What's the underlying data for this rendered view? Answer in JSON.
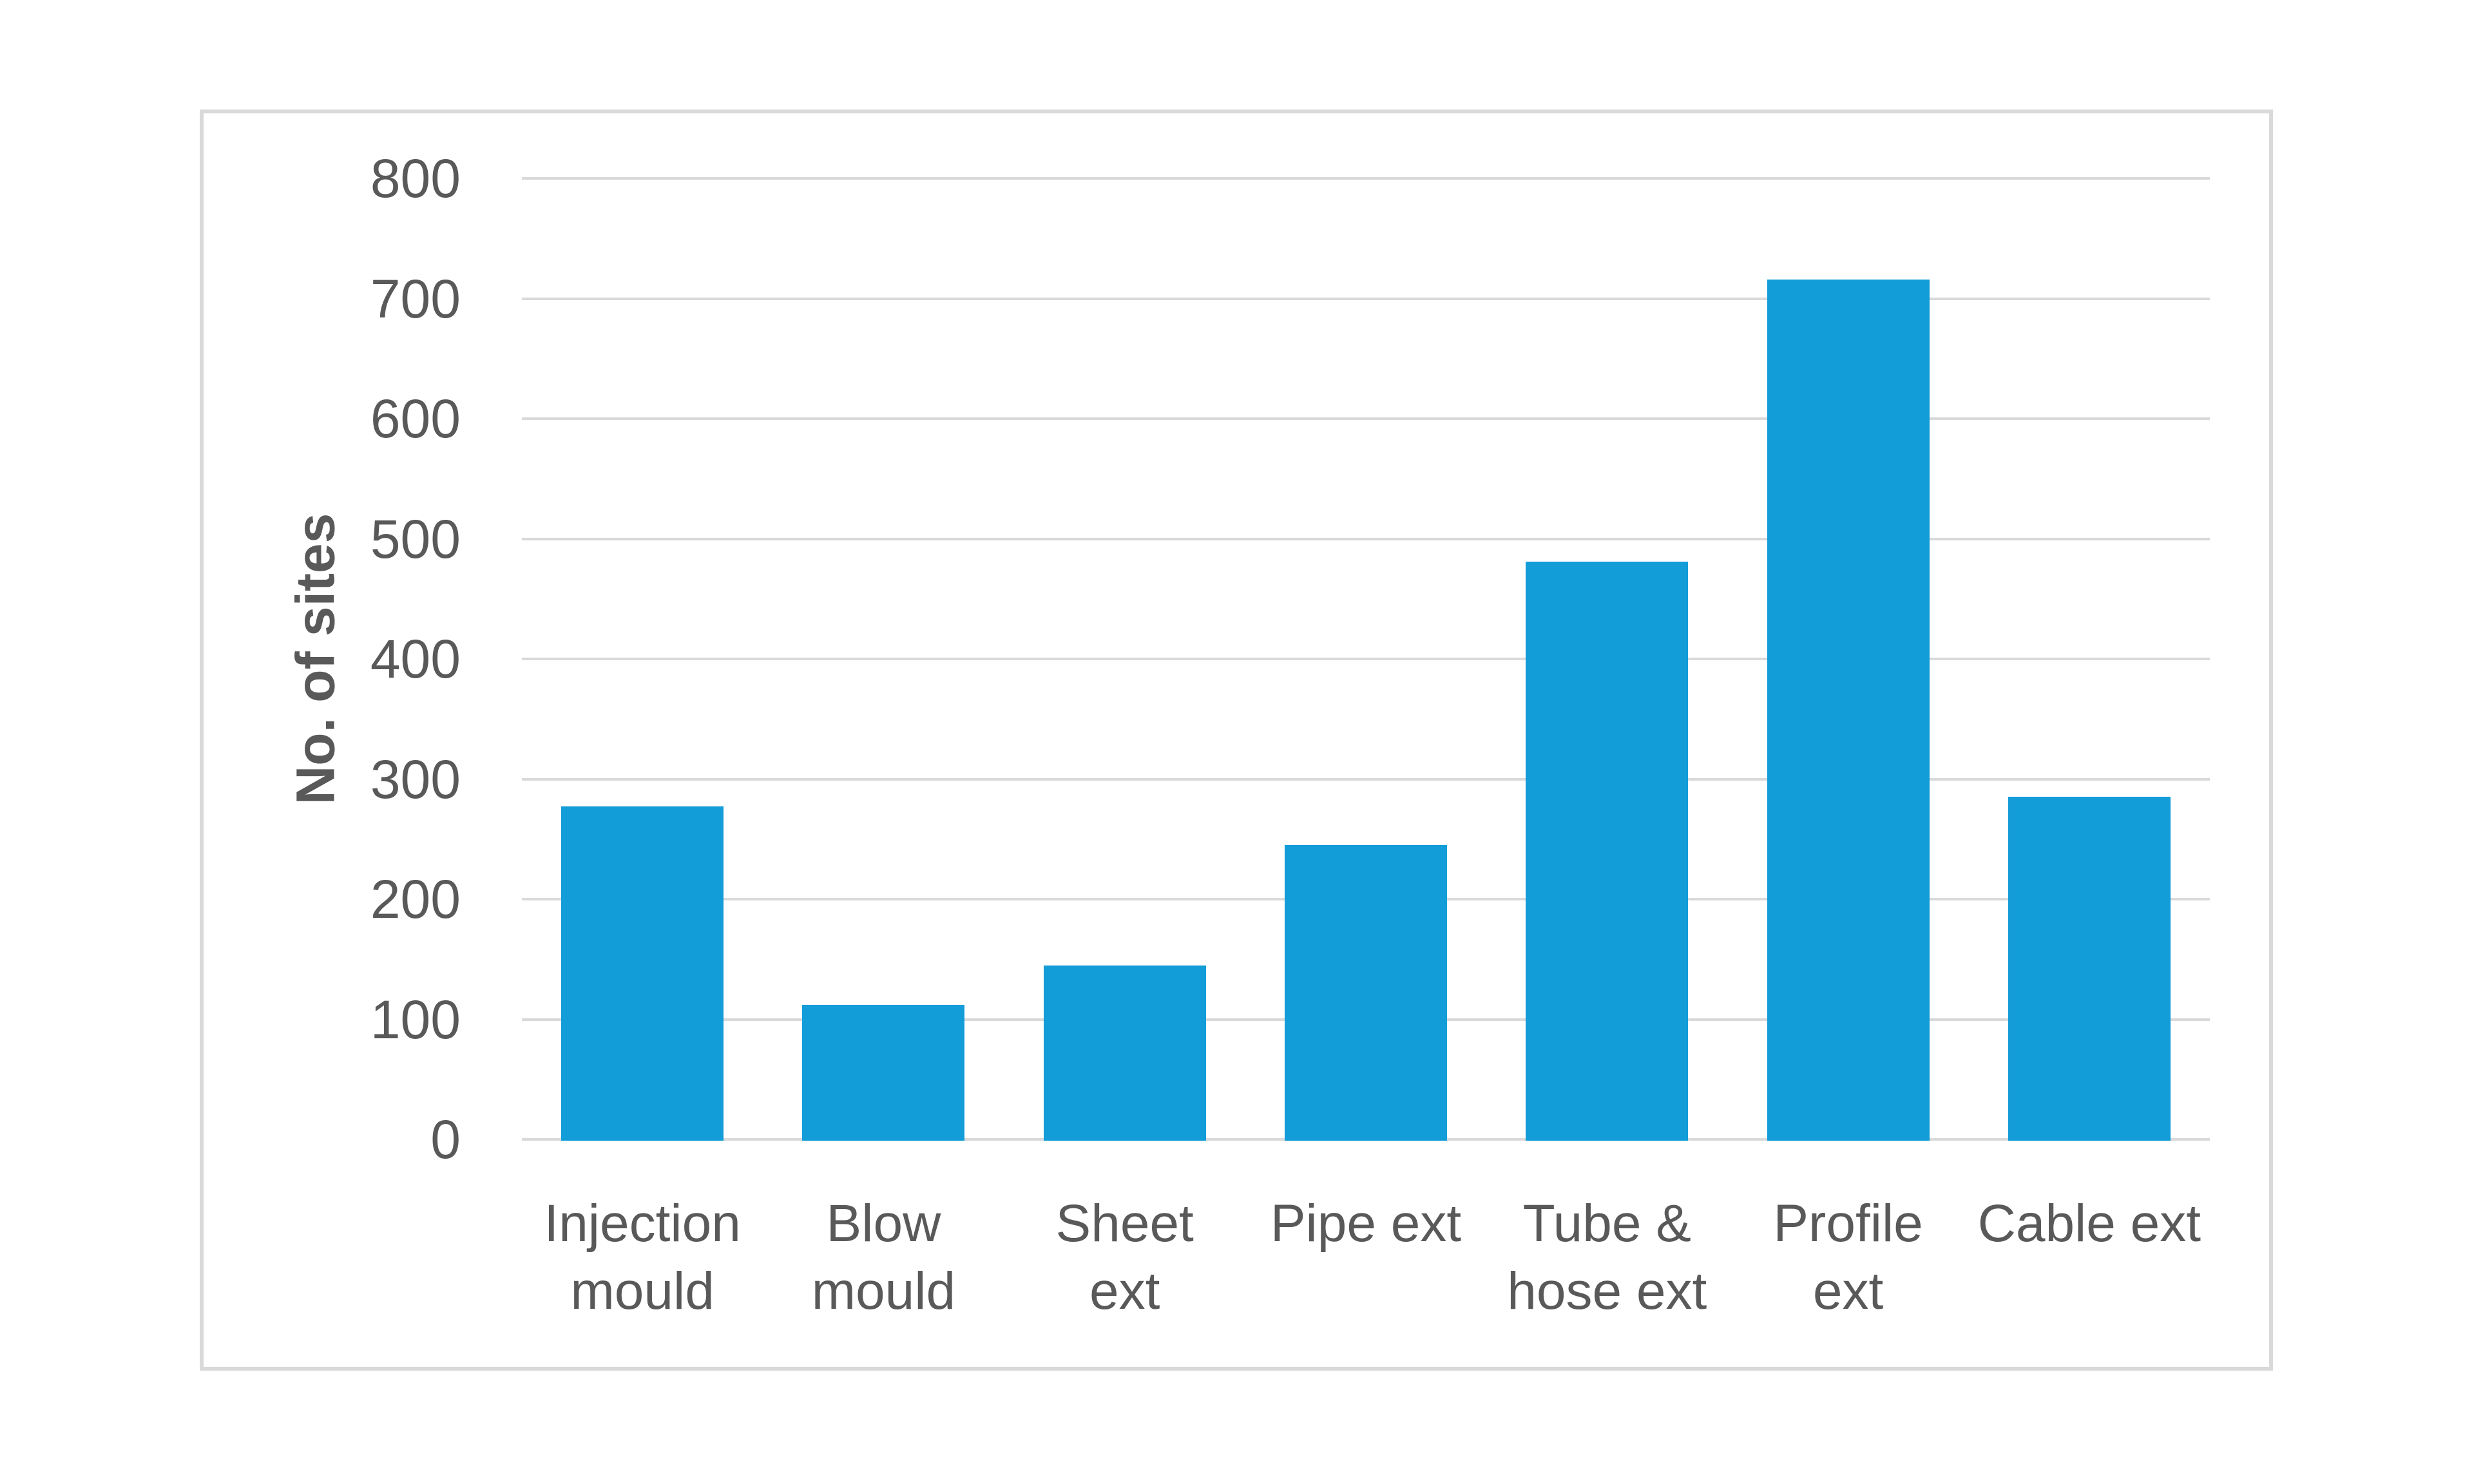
{
  "figure": {
    "background_color": "#ffffff",
    "panel_border_color": "#d9d9d9"
  },
  "chart_data": {
    "type": "bar",
    "title": "",
    "xlabel": "",
    "ylabel": "No. of sites",
    "categories": [
      "Injection\nmould",
      "Blow\nmould",
      "Sheet\next",
      "Pipe ext",
      "Tube &\nhose ext",
      "Profile\next",
      "Cable ext"
    ],
    "values": [
      277,
      112,
      145,
      245,
      481,
      716,
      285
    ],
    "y_ticks": [
      0,
      100,
      200,
      300,
      400,
      500,
      600,
      700,
      800
    ],
    "ylim": [
      0,
      800
    ],
    "grid": true,
    "legend_position": "none",
    "bar_color": "#129cd8",
    "gridline_color": "#d9d9d9",
    "text_color": "#595959"
  }
}
